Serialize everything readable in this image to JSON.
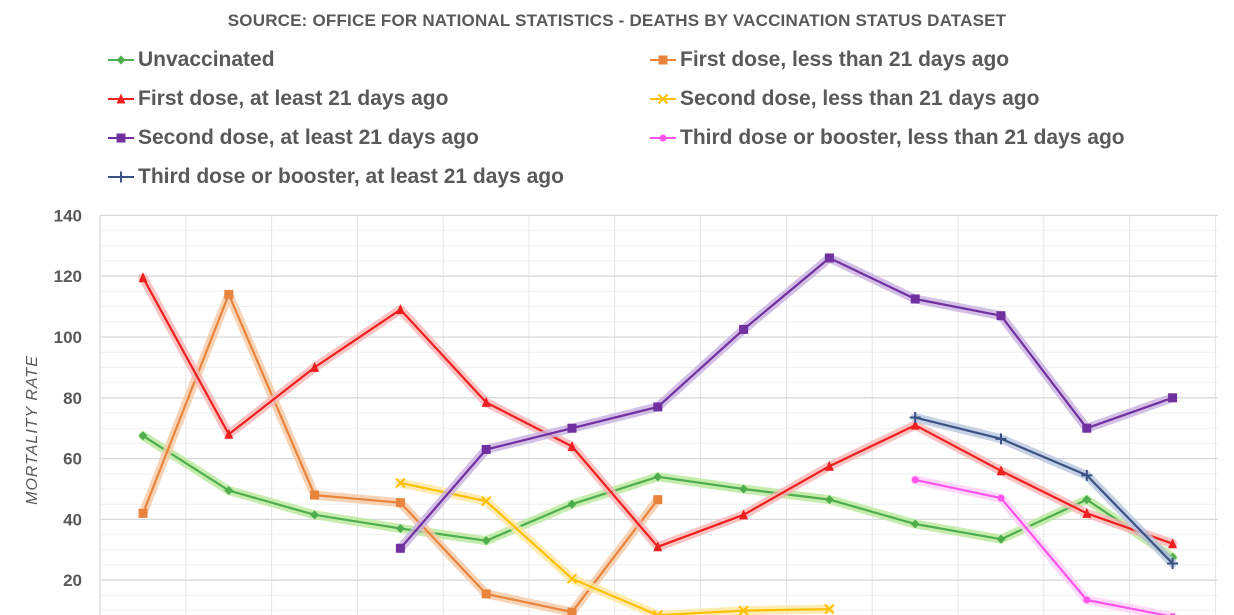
{
  "chart_data": {
    "type": "line",
    "title": "",
    "subtitle": "SOURCE: OFFICE FOR NATIONAL STATISTICS - DEATHS BY VACCINATION STATUS DATASET",
    "xlabel": "",
    "ylabel": "MORTALITY RATE",
    "ylim": [
      0,
      140
    ],
    "yticks": [
      20,
      40,
      60,
      80,
      100,
      120,
      140
    ],
    "grid": true,
    "legend_position": "top",
    "x": [
      1,
      2,
      3,
      4,
      5,
      6,
      7,
      8,
      9,
      10,
      11,
      12,
      13
    ],
    "series": [
      {
        "name": "Unvaccinated",
        "color": "#4eae4e",
        "glow": "#b8e89a",
        "marker": "diamond",
        "values": [
          67.5,
          49.5,
          41.5,
          37,
          33,
          45,
          54,
          50,
          46.5,
          38.5,
          33.5,
          46.5,
          27.5
        ]
      },
      {
        "name": "First dose, less than 21 days ago",
        "color": "#e8843c",
        "glow": "#f5c9a5",
        "marker": "square",
        "values": [
          42,
          114,
          48,
          45.5,
          15.5,
          9.5,
          46.5,
          null,
          null,
          null,
          null,
          null,
          null
        ]
      },
      {
        "name": "First dose, at least 21 days ago",
        "color": "#f02020",
        "glow": "#f9b5b5",
        "marker": "triangle",
        "values": [
          119.5,
          68,
          90,
          109,
          78.5,
          64,
          31,
          41.5,
          57.5,
          71,
          56,
          42,
          32
        ]
      },
      {
        "name": "Second dose, less than 21 days ago",
        "color": "#ffc000",
        "glow": "#ffe6a0",
        "marker": "x",
        "values": [
          null,
          null,
          null,
          52,
          46,
          20.5,
          8.5,
          10,
          10.5,
          null,
          null,
          null,
          null
        ]
      },
      {
        "name": "Second dose, at least 21 days ago",
        "color": "#7030a0",
        "glow": "#c9b0e0",
        "marker": "square",
        "values": [
          null,
          null,
          null,
          30.5,
          63,
          70,
          77,
          102.5,
          126,
          112.5,
          107,
          70,
          80
        ]
      },
      {
        "name": "Third dose or booster, less than 21 days ago",
        "color": "#ff55ee",
        "glow": "#ffd0f8",
        "marker": "circle",
        "values": [
          null,
          null,
          null,
          null,
          null,
          null,
          null,
          null,
          null,
          53,
          47,
          13.5,
          8
        ]
      },
      {
        "name": "Third dose or booster, at least 21 days ago",
        "color": "#3a5283",
        "glow": "#b8c6e0",
        "marker": "plus",
        "values": [
          null,
          null,
          null,
          null,
          null,
          null,
          null,
          null,
          null,
          73.5,
          66.5,
          54.5,
          25.5
        ]
      }
    ]
  }
}
